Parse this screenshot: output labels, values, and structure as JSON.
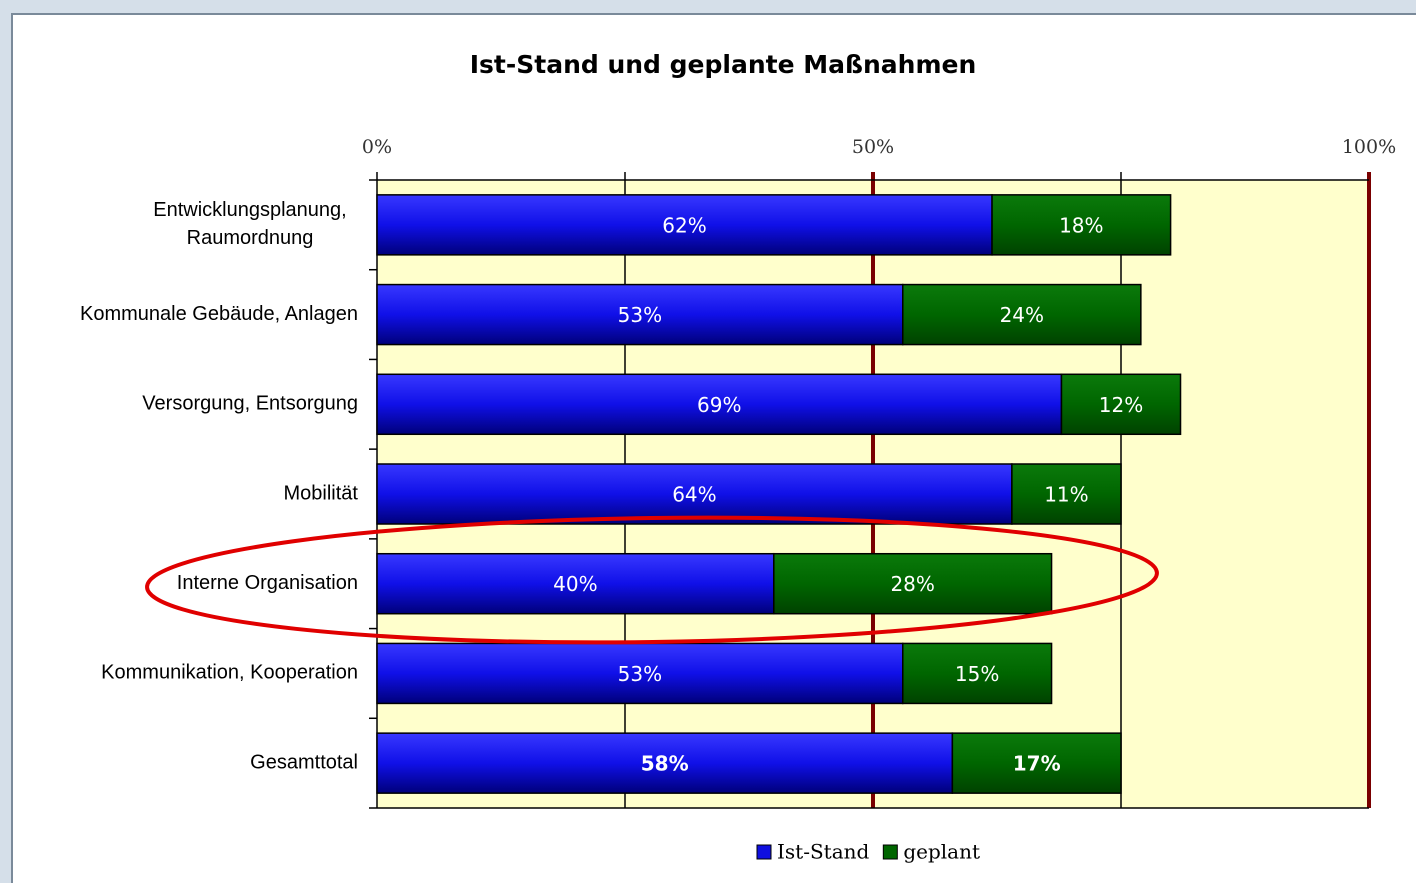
{
  "chart_data": {
    "type": "stacked_barh",
    "title": "Ist-Stand und geplante Maßnahmen",
    "categories": [
      "Entwicklungsplanung,\nRaumordnung",
      "Kommunale Gebäude, Anlagen",
      "Versorgung, Entsorgung",
      "Mobilität",
      "Interne Organisation",
      "Kommunikation, Kooperation",
      "Gesamttotal"
    ],
    "series": [
      {
        "name": "Ist-Stand",
        "color": "#1010e0",
        "values": [
          62,
          53,
          69,
          64,
          40,
          53,
          58
        ],
        "value_labels": [
          "62%",
          "53%",
          "69%",
          "64%",
          "40%",
          "53%",
          "58%"
        ]
      },
      {
        "name": "geplant",
        "color": "#006600",
        "values": [
          18,
          24,
          12,
          11,
          28,
          15,
          17
        ],
        "value_labels": [
          "18%",
          "24%",
          "12%",
          "11%",
          "28%",
          "15%",
          "17%"
        ]
      }
    ],
    "xlim": [
      0,
      100
    ],
    "xticks": [
      {
        "value": 0,
        "label": "0%"
      },
      {
        "value": 50,
        "label": "50%"
      },
      {
        "value": 100,
        "label": "100%"
      }
    ],
    "xminor": [
      25,
      75
    ],
    "legend": "bottom"
  }
}
